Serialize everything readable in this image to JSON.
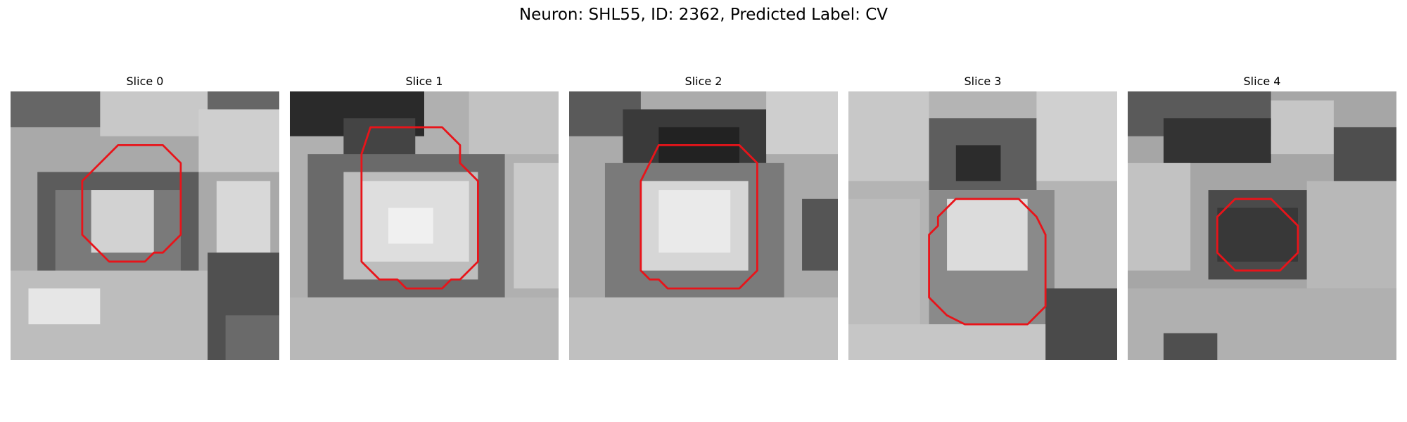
{
  "figure": {
    "title": "Neuron: SHL55, ID: 2362, Predicted Label: CV",
    "contour_color": "#e8141a",
    "panels": [
      {
        "title": "Slice 0"
      },
      {
        "title": "Slice 1"
      },
      {
        "title": "Slice 2"
      },
      {
        "title": "Slice 3"
      },
      {
        "title": "Slice 4"
      }
    ]
  }
}
